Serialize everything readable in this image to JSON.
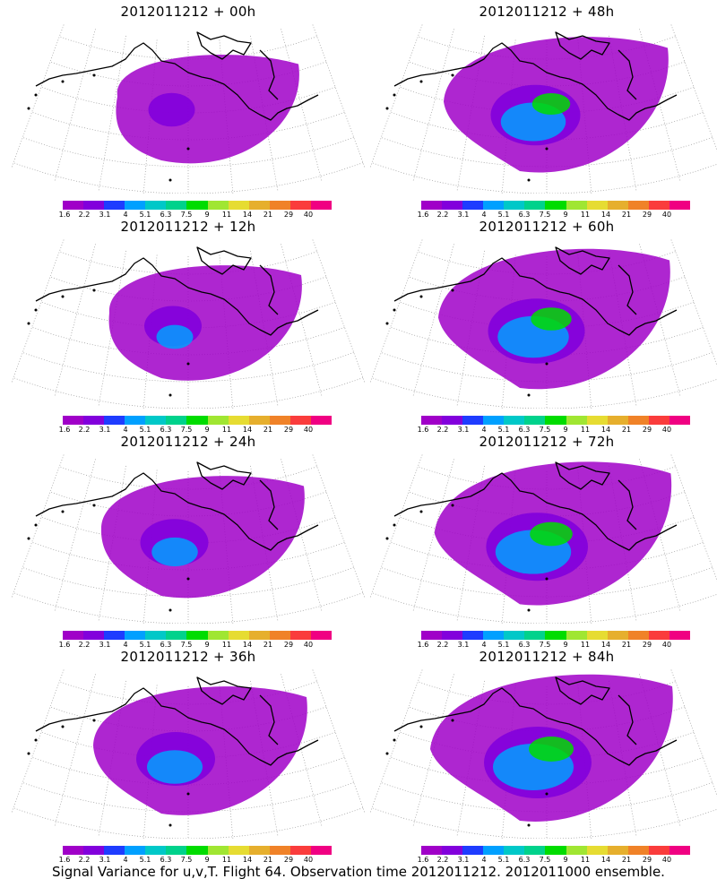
{
  "panels": [
    {
      "title": "2012011212 + 00h",
      "spread": 0.15
    },
    {
      "title": "2012011212 + 12h",
      "spread": 0.3
    },
    {
      "title": "2012011212 + 24h",
      "spread": 0.45
    },
    {
      "title": "2012011212 + 36h",
      "spread": 0.6
    },
    {
      "title": "2012011212 + 48h",
      "spread": 0.75
    },
    {
      "title": "2012011212 + 60h",
      "spread": 0.85
    },
    {
      "title": "2012011212 + 72h",
      "spread": 0.92
    },
    {
      "title": "2012011212 + 84h",
      "spread": 1.0
    }
  ],
  "colorbar": {
    "labels": [
      "1.6",
      "2.2",
      "3.1",
      "4",
      "5.1",
      "6.3",
      "7.5",
      "9",
      "11",
      "14",
      "21",
      "29",
      "40"
    ],
    "colors": [
      "#a000c8",
      "#8200dc",
      "#1e3cff",
      "#00a0ff",
      "#00c8c8",
      "#00d28c",
      "#00dc00",
      "#a0e632",
      "#e6dc32",
      "#e6af2d",
      "#f08228",
      "#fa3c3c",
      "#f00082"
    ]
  },
  "caption": "Signal Variance for u,v,T. Flight 64. Observation time 2012011212. 2012011000 ensemble."
}
